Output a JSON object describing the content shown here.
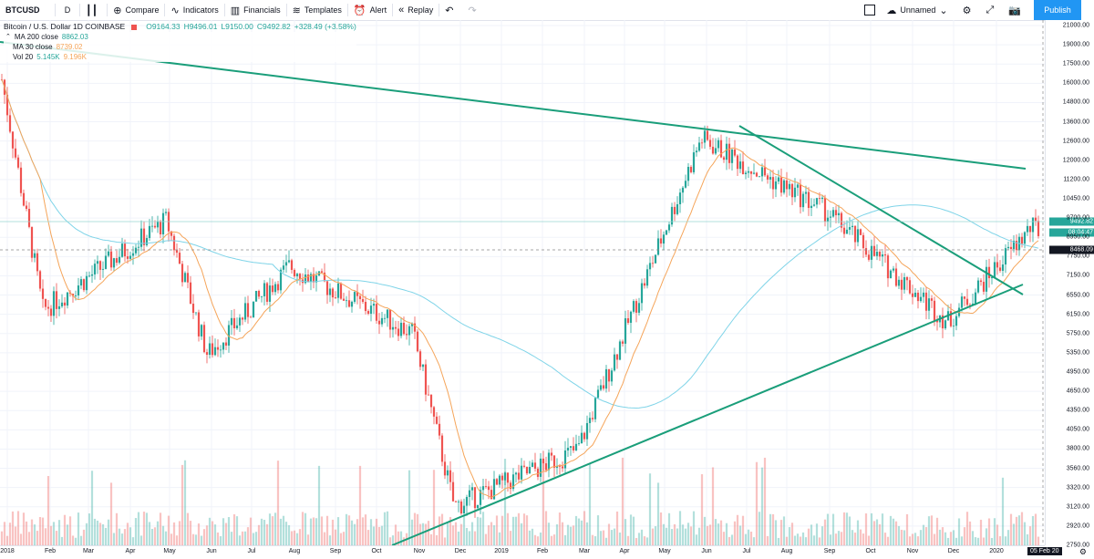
{
  "toolbar": {
    "symbol": "BTCUSD",
    "interval": "D",
    "compare": "Compare",
    "indicators": "Indicators",
    "financials": "Financials",
    "templates": "Templates",
    "alert": "Alert",
    "replay": "Replay",
    "layout_name": "Unnamed",
    "publish": "Publish"
  },
  "legend": {
    "title": "Bitcoin / U.S. Dollar  1D  COINBASE",
    "open": "O9164.33",
    "high": "H9496.01",
    "low": "L9150.00",
    "close": "C9492.82",
    "change": "+328.49 (+3.58%)",
    "ma200_label": "MA 200 close",
    "ma200_value": "8862.03",
    "ma30_label": "MA 30 close",
    "ma30_value": "8739.02",
    "vol_label": "Vol 20",
    "vol_value1": "5.145K",
    "vol_value2": "9.196K"
  },
  "price_axis": {
    "ticks": [
      "21000.00",
      "19000.00",
      "17500.00",
      "16000.00",
      "14800.00",
      "13600.00",
      "12600.00",
      "12000.00",
      "11200.00",
      "10450.00",
      "9700.00",
      "8950.00",
      "7750.00",
      "7150.00",
      "6550.00",
      "6150.00",
      "5750.00",
      "5350.00",
      "4950.00",
      "4650.00",
      "4350.00",
      "4050.00",
      "3800.00",
      "3560.00",
      "3320.00",
      "3120.00",
      "2920.00",
      "2750.00"
    ],
    "badge_price": "9492.82",
    "badge_countdown": "08:04:47",
    "badge_ma": "8468.09"
  },
  "time_axis": {
    "labels": [
      "2018",
      "Feb",
      "Mar",
      "Apr",
      "May",
      "Jun",
      "Jul",
      "Aug",
      "Sep",
      "Oct",
      "Nov",
      "Dec",
      "2019",
      "Feb",
      "Mar",
      "Apr",
      "May",
      "Jun",
      "Jul",
      "Aug",
      "Sep",
      "Oct",
      "Nov",
      "Dec",
      "2020"
    ],
    "crosshair_date": "05 Feb 20"
  },
  "colors": {
    "up": "#26a69a",
    "down": "#ef5350",
    "ma200": "#7fd4e8",
    "ma30": "#f5a55a",
    "trendline": "#1a9e7a",
    "accent": "#2196f3"
  },
  "chart_data": {
    "type": "candlestick",
    "symbol": "BTCUSD",
    "exchange": "COINBASE",
    "x_range": [
      "2018-01",
      "2020-02"
    ],
    "y_range": [
      2750,
      21000
    ],
    "scale": "log",
    "series": [
      {
        "name": "MA 200 close",
        "last": 8862.03
      },
      {
        "name": "MA 30 close",
        "last": 8739.02
      }
    ],
    "key_points": [
      {
        "date": "2018-01",
        "price": 17000
      },
      {
        "date": "2018-02",
        "price": 6900
      },
      {
        "date": "2018-05",
        "price": 9800
      },
      {
        "date": "2018-06",
        "price": 5800
      },
      {
        "date": "2018-08",
        "price": 8200
      },
      {
        "date": "2018-11",
        "price": 6300
      },
      {
        "date": "2018-12",
        "price": 3200
      },
      {
        "date": "2019-03",
        "price": 4000
      },
      {
        "date": "2019-06",
        "price": 13500
      },
      {
        "date": "2019-09",
        "price": 10200
      },
      {
        "date": "2019-12",
        "price": 6600
      },
      {
        "date": "2020-02",
        "price": 9492.82
      }
    ]
  }
}
